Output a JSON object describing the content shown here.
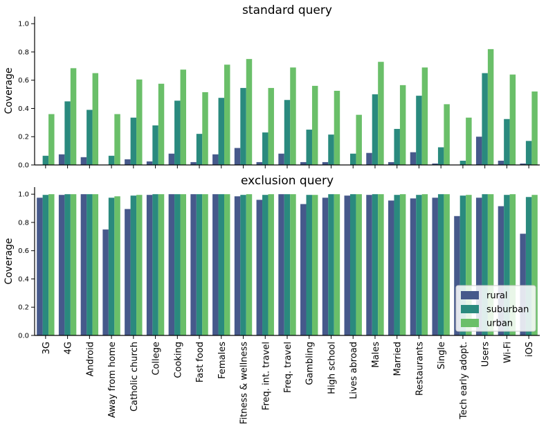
{
  "chart_data": [
    {
      "type": "bar",
      "title": "standard query",
      "xlabel": "",
      "ylabel": "Coverage",
      "ylim": [
        0,
        1.05
      ],
      "yticks": [
        "0.0",
        "0.2",
        "0.4",
        "0.6",
        "0.8",
        "1.0"
      ],
      "show_xtick_labels": false,
      "categories": [
        "3G",
        "4G",
        "Android",
        "Away from home",
        "Catholic church",
        "College",
        "Cooking",
        "Fast food",
        "Females",
        "Fitness & wellness",
        "Freq. int. travel",
        "Freq. travel",
        "Gambling",
        "High school",
        "Lives abroad",
        "Males",
        "Married",
        "Restaurants",
        "Single",
        "Tech early adopt.",
        "Users",
        "Wi-Fi",
        "iOS"
      ],
      "series": [
        {
          "name": "rural",
          "color": "#46598b",
          "values": [
            0.0,
            0.075,
            0.055,
            0.0,
            0.04,
            0.025,
            0.08,
            0.02,
            0.075,
            0.12,
            0.02,
            0.08,
            0.02,
            0.02,
            0.0,
            0.085,
            0.02,
            0.09,
            0.01,
            0.0,
            0.2,
            0.03,
            0.01
          ]
        },
        {
          "name": "suburban",
          "color": "#2a8a7e",
          "values": [
            0.065,
            0.45,
            0.39,
            0.065,
            0.335,
            0.28,
            0.455,
            0.22,
            0.475,
            0.545,
            0.23,
            0.46,
            0.25,
            0.215,
            0.08,
            0.5,
            0.255,
            0.49,
            0.125,
            0.03,
            0.65,
            0.325,
            0.17
          ]
        },
        {
          "name": "urban",
          "color": "#6abf69",
          "values": [
            0.36,
            0.685,
            0.65,
            0.36,
            0.605,
            0.575,
            0.675,
            0.515,
            0.71,
            0.75,
            0.545,
            0.69,
            0.56,
            0.525,
            0.355,
            0.73,
            0.565,
            0.69,
            0.43,
            0.335,
            0.82,
            0.64,
            0.52
          ]
        }
      ]
    },
    {
      "type": "bar",
      "title": "exclusion query",
      "xlabel": "",
      "ylabel": "Coverage",
      "ylim": [
        0,
        1.05
      ],
      "yticks": [
        "0.0",
        "0.2",
        "0.4",
        "0.6",
        "0.8",
        "1.0"
      ],
      "show_xtick_labels": true,
      "legend": "lower-right",
      "categories": [
        "3G",
        "4G",
        "Android",
        "Away from home",
        "Catholic church",
        "College",
        "Cooking",
        "Fast food",
        "Females",
        "Fitness & wellness",
        "Freq. int. travel",
        "Freq. travel",
        "Gambling",
        "High school",
        "Lives abroad",
        "Males",
        "Married",
        "Restaurants",
        "Single",
        "Tech early adopt.",
        "Users",
        "Wi-Fi",
        "iOS"
      ],
      "series": [
        {
          "name": "rural",
          "color": "#46598b",
          "values": [
            0.975,
            0.995,
            1.0,
            0.75,
            0.895,
            0.995,
            1.0,
            1.0,
            1.0,
            0.985,
            0.96,
            1.0,
            0.93,
            0.975,
            0.99,
            0.995,
            0.955,
            0.97,
            0.975,
            0.845,
            0.975,
            0.915,
            0.72
          ]
        },
        {
          "name": "suburban",
          "color": "#2a8a7e",
          "values": [
            0.995,
            1.0,
            1.0,
            0.975,
            0.99,
            1.0,
            1.0,
            1.0,
            1.0,
            0.995,
            0.995,
            1.0,
            0.995,
            1.0,
            1.0,
            1.0,
            0.995,
            0.995,
            1.0,
            0.99,
            1.0,
            0.995,
            0.98
          ]
        },
        {
          "name": "urban",
          "color": "#6abf69",
          "values": [
            1.0,
            1.0,
            1.0,
            0.985,
            0.995,
            1.0,
            1.0,
            1.0,
            1.0,
            1.0,
            1.0,
            1.0,
            0.995,
            1.0,
            1.0,
            1.0,
            1.0,
            1.0,
            1.0,
            0.995,
            1.0,
            1.0,
            0.995
          ]
        }
      ]
    }
  ]
}
